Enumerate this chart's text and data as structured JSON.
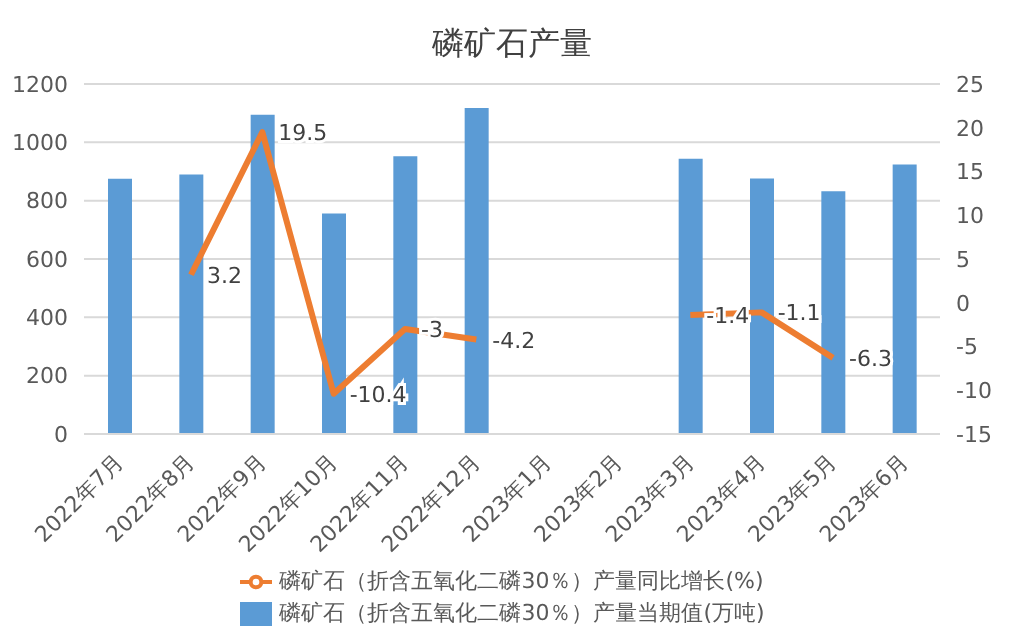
{
  "chart_data": {
    "type": "bar",
    "title": "磷矿石产量",
    "categories": [
      "2022年7月",
      "2022年8月",
      "2022年9月",
      "2022年10月",
      "2022年11月",
      "2022年12月",
      "2023年1月",
      "2023年2月",
      "2023年3月",
      "2023年4月",
      "2023年5月",
      "2023年6月"
    ],
    "series": [
      {
        "name": "磷矿石（折含五氧化二磷30％）产量当期值(万吨)",
        "color": "#5b9bd5",
        "values": [
          875,
          890,
          1095,
          756,
          952,
          1118,
          null,
          null,
          944,
          876,
          832,
          924
        ]
      },
      {
        "name": "磷矿石（折含五氧化二磷30％）产量同比增长(%)",
        "type": "line",
        "axis": "y2",
        "color": "#ed7d31",
        "values": [
          null,
          3.2,
          19.5,
          -10.4,
          -3,
          -4.2,
          null,
          null,
          -1.4,
          -1.1,
          -6.3,
          null
        ],
        "value_labels": [
          null,
          "3.2",
          "19.5",
          "-10.4",
          "-3",
          "-4.2",
          null,
          null,
          "-1.4",
          "-1.1",
          "-6.3",
          null
        ]
      }
    ],
    "ylim": [
      0,
      1200
    ],
    "yticks": [
      0,
      200,
      400,
      600,
      800,
      1000,
      1200
    ],
    "y2lim": [
      -15,
      25
    ],
    "y2ticks": [
      -15,
      -10,
      -5,
      0,
      5,
      10,
      15,
      20,
      25
    ],
    "grid": "y",
    "legend": "bottom",
    "marker": "none"
  }
}
